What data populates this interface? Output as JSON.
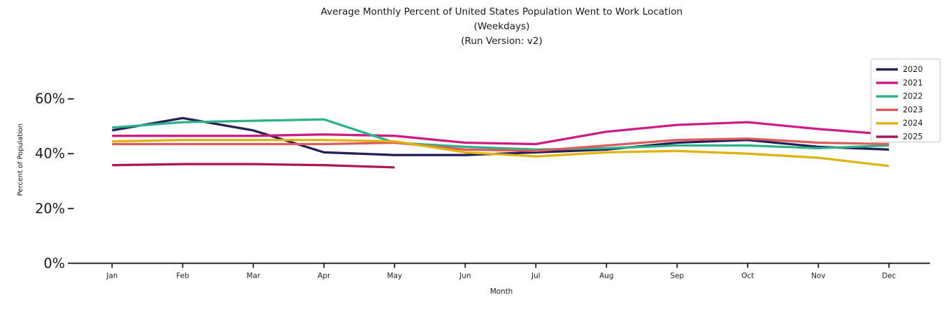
{
  "title": {
    "line1": "Average Monthly Percent of United States Population Went to Work Location",
    "line2": "(Weekdays)",
    "line3": "(Run Version: v2)"
  },
  "axes": {
    "xlabel": "Month",
    "ylabel": "Percent of Population",
    "ytick_labels": [
      "0%",
      "20%",
      "40%",
      "60%"
    ],
    "ytick_values": [
      0,
      20,
      40,
      60
    ]
  },
  "legend": {
    "location": "upper-right",
    "entries": [
      "2020",
      "2021",
      "2022",
      "2023",
      "2024",
      "2025"
    ]
  },
  "chart_data": {
    "type": "line",
    "title": "Average Monthly Percent of United States Population Went to Work Location (Weekdays) (Run Version: v2)",
    "xlabel": "Month",
    "ylabel": "Percent of Population",
    "ylim": [
      0,
      75
    ],
    "grid": false,
    "legend_position": "upper right",
    "categories": [
      "Jan",
      "Feb",
      "Mar",
      "Apr",
      "May",
      "Jun",
      "Jul",
      "Aug",
      "Sep",
      "Oct",
      "Nov",
      "Dec"
    ],
    "series": [
      {
        "name": "2020",
        "color": "#232057",
        "values": [
          48.5,
          53,
          48.5,
          40.5,
          39.5,
          39.5,
          40.5,
          41.5,
          44,
          45,
          42.5,
          41.5
        ]
      },
      {
        "name": "2021",
        "color": "#cb1d86",
        "values": [
          46.5,
          46.5,
          46.5,
          47,
          46.5,
          44,
          43.5,
          48,
          50.5,
          51.5,
          49,
          47
        ]
      },
      {
        "name": "2022",
        "color": "#2db188",
        "values": [
          49.5,
          51.5,
          52,
          52.5,
          44,
          42.5,
          41.5,
          42,
          43,
          43,
          42,
          43
        ]
      },
      {
        "name": "2023",
        "color": "#dd5b5b",
        "values": [
          43.5,
          43.5,
          43.5,
          43.5,
          44,
          41.5,
          41,
          43,
          45,
          45.5,
          44,
          43.5
        ]
      },
      {
        "name": "2024",
        "color": "#dfb40f",
        "values": [
          44.5,
          45,
          45,
          45,
          44.5,
          40.5,
          39,
          40.5,
          41,
          40,
          38.5,
          35.5
        ]
      },
      {
        "name": "2025",
        "color": "#ab1854",
        "values": [
          35.8,
          36.2,
          36.2,
          35.8,
          35
        ]
      }
    ]
  }
}
